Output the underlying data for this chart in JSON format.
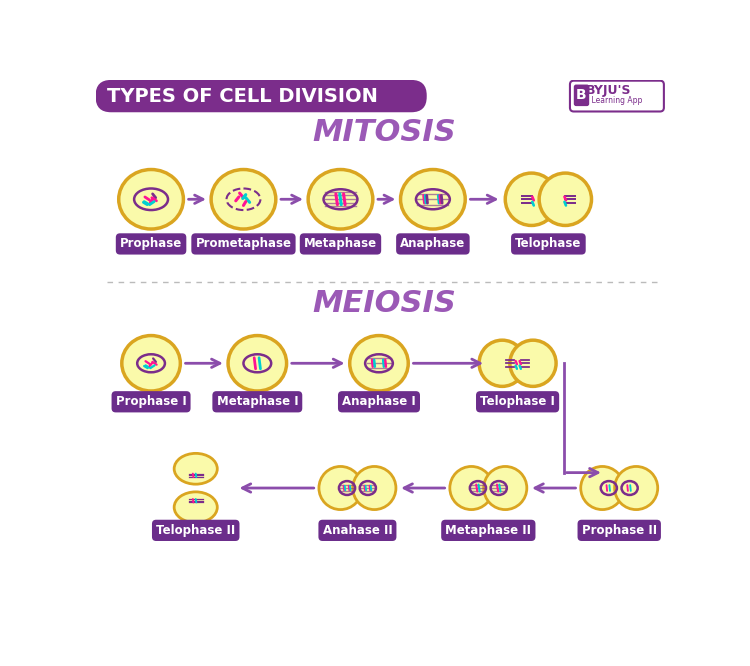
{
  "title": "TYPES OF CELL DIVISION",
  "title_bg_color": "#7B2D8B",
  "title_text_color": "#FFFFFF",
  "bg_color": "#FFFFFF",
  "mitosis_title": "MITOSIS",
  "meiosis_title": "MEIOSIS",
  "section_title_color": "#9B59B6",
  "mitosis_labels": [
    "Prophase",
    "Prometaphase",
    "Metaphase",
    "Anaphase",
    "Telophase"
  ],
  "meiosis_row1_labels": [
    "Prophase I",
    "Metaphase I",
    "Anaphase I",
    "Telophase I"
  ],
  "meiosis_row2_labels": [
    "Telophase II",
    "Anahase II",
    "Metaphase II",
    "Prophase II"
  ],
  "label_bg_color": "#6B2D8B",
  "label_text_color": "#FFFFFF",
  "cell_fill": "#FAFAAA",
  "cell_edge": "#DAA520",
  "arrow_color": "#8B4DAB",
  "divider_color": "#BBBBBB",
  "chr_pink": "#FF1493",
  "chr_teal": "#00CED1",
  "chr_purple": "#7B2D8B"
}
